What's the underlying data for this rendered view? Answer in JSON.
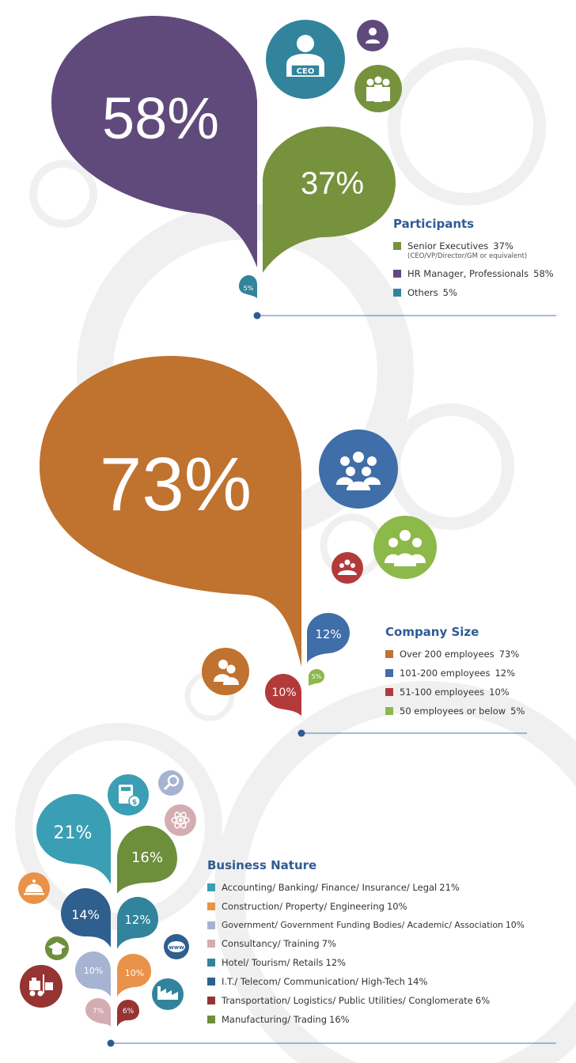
{
  "colors": {
    "purple": "#604a7b",
    "green": "#76923c",
    "teal": "#31849b",
    "orange": "#c0722f",
    "blue": "#3f6ea9",
    "red": "#b33a3a",
    "lightgreen": "#8db84a",
    "cyan": "#3a9fb4",
    "lightorange": "#e8924a",
    "lavender": "#a6b4d2",
    "pink": "#d3adb2",
    "navy": "#2f5f8f",
    "maroon": "#963434",
    "olive": "#6d8e3b",
    "heading": "#2f5b93"
  },
  "chart_data": [
    {
      "type": "pie",
      "title": "Participants",
      "categories": [
        "Senior Executives",
        "HR Manager, Professionals",
        "Others"
      ],
      "values": [
        37,
        58,
        5
      ],
      "unit": "%",
      "colors": [
        "#76923c",
        "#604a7b",
        "#31849b"
      ]
    },
    {
      "type": "pie",
      "title": "Company Size",
      "categories": [
        "Over 200 employees",
        "101-200 employees",
        "51-100 employees",
        "50 employees or below"
      ],
      "values": [
        73,
        12,
        10,
        5
      ],
      "unit": "%",
      "colors": [
        "#c0722f",
        "#3f6ea9",
        "#b33a3a",
        "#8db84a"
      ]
    },
    {
      "type": "pie",
      "title": "Business Nature",
      "categories": [
        "Accounting/ Banking/ Finance/ Insurance/ Legal",
        "Construction/ Property/ Engineering",
        "Government/ Government Funding Bodies/ Academic/ Association",
        "Consultancy/ Training",
        "Hotel/ Tourism/ Retails",
        "I.T./ Telecom/ Communication/ High-Tech",
        "Transportation/ Logistics/ Public Utilities/ Conglomerate",
        "Manufacturing/ Trading"
      ],
      "values": [
        21,
        10,
        10,
        7,
        12,
        14,
        6,
        16
      ],
      "unit": "%",
      "colors": [
        "#3a9fb4",
        "#e8924a",
        "#a6b4d2",
        "#d3adb2",
        "#31849b",
        "#2f5f8f",
        "#963434",
        "#6d8e3b"
      ]
    }
  ],
  "participants": {
    "title": "Participants",
    "bubbles": {
      "hr": "58%",
      "senior": "37%",
      "others": "5%"
    },
    "ceo_label": "CEO",
    "items": [
      {
        "label": "Senior Executives",
        "value": "37%",
        "note": "(CEO/VP/Director/GM or equivalent)"
      },
      {
        "label": "HR Manager, Professionals",
        "value": "58%"
      },
      {
        "label": "Others",
        "value": "5%"
      }
    ]
  },
  "company_size": {
    "title": "Company Size",
    "bubbles": {
      "over200": "73%",
      "b101_200": "12%",
      "b51_100": "10%",
      "below50": "5%"
    },
    "items": [
      {
        "label": "Over 200 employees",
        "value": "73%"
      },
      {
        "label": "101-200 employees",
        "value": "12%"
      },
      {
        "label": "51-100 employees",
        "value": "10%"
      },
      {
        "label": "50 employees or below",
        "value": "5%"
      }
    ]
  },
  "business_nature": {
    "title": "Business Nature",
    "bubbles": {
      "accounting": "21%",
      "manufacturing": "16%",
      "it": "14%",
      "hotel": "12%",
      "government": "10%",
      "construction": "10%",
      "consultancy": "7%",
      "transportation": "6%"
    },
    "items": [
      {
        "label": "Accounting/ Banking/ Finance/ Insurance/ Legal",
        "value": "21%"
      },
      {
        "label": "Construction/ Property/ Engineering",
        "value": "10%"
      },
      {
        "label": "Government/ Government Funding Bodies/ Academic/ Association",
        "value": "10%"
      },
      {
        "label": "Consultancy/ Training",
        "value": "7%"
      },
      {
        "label": "Hotel/ Tourism/ Retails",
        "value": "12%"
      },
      {
        "label": "I.T./ Telecom/ Communication/ High-Tech",
        "value": "14%"
      },
      {
        "label": "Transportation/ Logistics/ Public Utilities/ Conglomerate",
        "value": "6%"
      },
      {
        "label": "Manufacturing/ Trading",
        "value": "16%"
      }
    ]
  },
  "icons": {
    "ceo": "ceo-person-icon",
    "single_person": "person-icon",
    "group_three": "group-of-people-icon",
    "large_group": "large-group-icon",
    "medium_group": "medium-group-icon",
    "small_group": "small-group-icon",
    "pair": "two-people-icon",
    "calculator": "calculator-dollar-icon",
    "magnifier": "magnifier-icon",
    "atom": "atom-icon",
    "service_bell": "service-bell-icon",
    "www": "www-globe-icon",
    "graduation": "graduation-cap-icon",
    "forklift": "forklift-icon",
    "factory": "factory-icon"
  }
}
